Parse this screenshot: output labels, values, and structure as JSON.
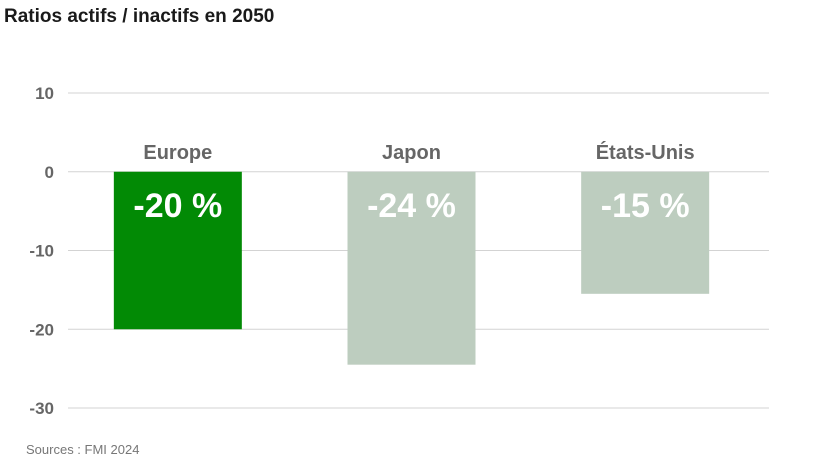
{
  "title": "Ratios actifs / inactifs en 2050",
  "source": "Sources : FMI 2024",
  "colors": {
    "highlight": "#028a05",
    "muted": "#bdcdbf",
    "grid": "#d3d3d3",
    "text": "#666666"
  },
  "chart_data": {
    "type": "bar",
    "title": "Ratios actifs / inactifs en 2050",
    "categories": [
      "Europe",
      "Japon",
      "États-Unis"
    ],
    "values": [
      -20,
      -24.5,
      -15.5
    ],
    "data_labels": [
      "-20 %",
      "-24 %",
      "-15 %"
    ],
    "highlight": [
      true,
      false,
      false
    ],
    "ylim": [
      -30,
      10
    ],
    "yticks": [
      10,
      0,
      -10,
      -20,
      -30
    ],
    "grid": true,
    "legend": "none"
  }
}
